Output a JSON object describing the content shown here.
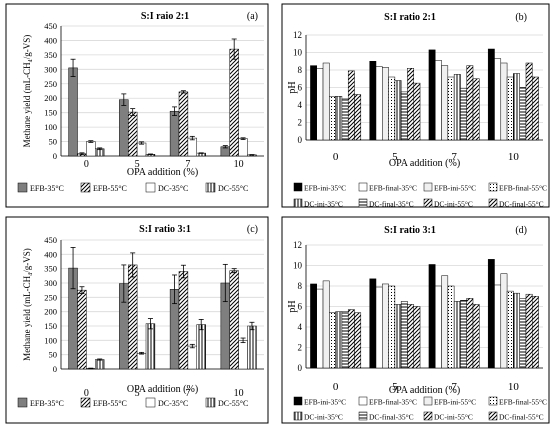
{
  "colors": {
    "frame": "#000000",
    "grid": "#d9d9d9",
    "dark": "#7f7f7f",
    "black": "#000000",
    "white": "#ffffff"
  },
  "chart_data": [
    {
      "type": "bar",
      "title": "S:I raio 2:1",
      "panel_label": "(a)",
      "xlabel": "OPA addition (%)",
      "ylabel": "Methane yield (mL-CH₄/g-VS)",
      "ylim": [
        0,
        450
      ],
      "yticks": [
        0,
        50,
        100,
        150,
        200,
        250,
        300,
        350,
        400,
        450
      ],
      "categories": [
        "0",
        "5",
        "7",
        "10"
      ],
      "legend_position": "bottom",
      "series": [
        {
          "name": "EFB-35°C",
          "style": "dark",
          "values": [
            305,
            195,
            155,
            32
          ],
          "errors": [
            30,
            20,
            15,
            4
          ]
        },
        {
          "name": "EFB-55°C",
          "style": "diag",
          "values": [
            8,
            152,
            222,
            370
          ],
          "errors": [
            3,
            12,
            4,
            35
          ]
        },
        {
          "name": "DC-35°C",
          "style": "white",
          "values": [
            50,
            45,
            62,
            60
          ],
          "errors": [
            3,
            4,
            6,
            3
          ]
        },
        {
          "name": "DC-55°C",
          "style": "vline",
          "values": [
            25,
            6,
            10,
            4
          ],
          "errors": [
            3,
            1,
            1,
            1
          ]
        }
      ]
    },
    {
      "type": "bar",
      "title": "S:I ratio  2:1",
      "panel_label": "(b)",
      "xlabel": "OPA addition (%)",
      "ylabel": "pH",
      "ylim": [
        0,
        12
      ],
      "yticks": [
        0,
        2,
        4,
        6,
        8,
        10,
        12
      ],
      "categories": [
        "0",
        "5",
        "7",
        "10"
      ],
      "legend_position": "bottom",
      "series": [
        {
          "name": "EFB-ini-35°C",
          "style": "black",
          "values": [
            8.5,
            9.0,
            10.3,
            10.4
          ]
        },
        {
          "name": "EFB-final-35°C",
          "style": "white",
          "values": [
            8.2,
            8.4,
            9.1,
            9.3
          ]
        },
        {
          "name": "EFB-ini-55°C",
          "style": "light",
          "values": [
            8.8,
            8.3,
            8.5,
            8.8
          ]
        },
        {
          "name": "EFB-final-55°C",
          "style": "dots",
          "values": [
            5.0,
            7.2,
            7.2,
            7.2
          ]
        },
        {
          "name": "DC-ini-35°C",
          "style": "vline",
          "values": [
            5.0,
            6.8,
            7.5,
            7.6
          ]
        },
        {
          "name": "DC-final-35°C",
          "style": "hline",
          "values": [
            4.7,
            5.5,
            5.9,
            6.0
          ]
        },
        {
          "name": "DC-ini-55°C",
          "style": "diag",
          "values": [
            7.9,
            8.2,
            8.5,
            8.8
          ]
        },
        {
          "name": "DC-final-55°C",
          "style": "diag",
          "values": [
            5.2,
            6.5,
            7.0,
            7.2
          ]
        }
      ]
    },
    {
      "type": "bar",
      "title": "S:I ratio 3:1",
      "panel_label": "(c)",
      "xlabel": "OPA addition (%)",
      "ylabel": "Methane yield (mL-CH₄/g-VS)",
      "ylim": [
        0,
        450
      ],
      "yticks": [
        0,
        50,
        100,
        150,
        200,
        250,
        300,
        350,
        400,
        450
      ],
      "categories": [
        "0",
        "5",
        "7",
        "10"
      ],
      "legend_position": "bottom",
      "series": [
        {
          "name": "EFB-35°C",
          "style": "dark",
          "values": [
            352,
            298,
            278,
            300
          ],
          "errors": [
            72,
            65,
            50,
            65
          ]
        },
        {
          "name": "EFB-55°C",
          "style": "diag",
          "values": [
            275,
            363,
            340,
            343
          ],
          "errors": [
            12,
            42,
            22,
            7
          ]
        },
        {
          "name": "DC-35°C",
          "style": "white",
          "values": [
            2,
            55,
            80,
            100
          ],
          "errors": [
            1,
            3,
            6,
            8
          ]
        },
        {
          "name": "DC-55°C",
          "style": "vline",
          "values": [
            33,
            158,
            155,
            150
          ],
          "errors": [
            2,
            18,
            18,
            13
          ]
        }
      ]
    },
    {
      "type": "bar",
      "title": "S:I ratio 3:1",
      "panel_label": "(d)",
      "xlabel": "OPA addition (%)",
      "ylabel": "pH",
      "ylim": [
        0,
        12
      ],
      "yticks": [
        0,
        2,
        4,
        6,
        8,
        10,
        12
      ],
      "categories": [
        "0",
        "5",
        "7",
        "10"
      ],
      "legend_position": "bottom",
      "series": [
        {
          "name": "EFB-ini-35°C",
          "style": "black",
          "values": [
            8.2,
            8.7,
            10.1,
            10.6
          ]
        },
        {
          "name": "EFB-final-35°C",
          "style": "white",
          "values": [
            7.7,
            7.9,
            8.0,
            8.1
          ]
        },
        {
          "name": "EFB-ini-55°C",
          "style": "light",
          "values": [
            8.5,
            8.2,
            9.0,
            9.2
          ]
        },
        {
          "name": "EFB-final-55°C",
          "style": "dots",
          "values": [
            5.4,
            8.0,
            8.0,
            7.5
          ]
        },
        {
          "name": "DC-ini-35°C",
          "style": "vline",
          "values": [
            5.5,
            6.2,
            6.5,
            7.3
          ]
        },
        {
          "name": "DC-final-35°C",
          "style": "hline",
          "values": [
            5.5,
            6.5,
            6.6,
            6.8
          ]
        },
        {
          "name": "DC-ini-55°C",
          "style": "diag",
          "values": [
            5.7,
            6.2,
            6.8,
            7.2
          ]
        },
        {
          "name": "DC-final-55°C",
          "style": "diag",
          "values": [
            5.4,
            6.0,
            6.2,
            7.0
          ]
        }
      ]
    }
  ]
}
